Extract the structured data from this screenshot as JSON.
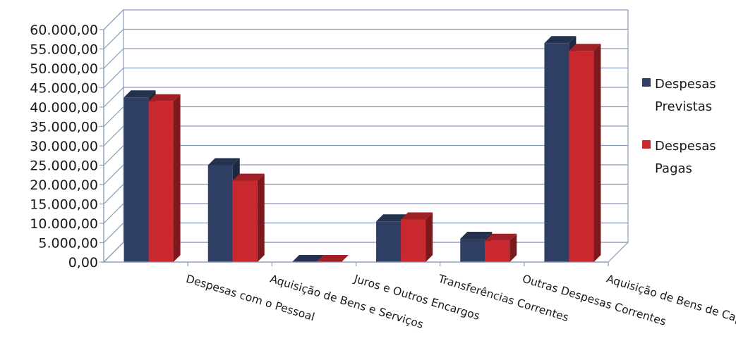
{
  "chart_data": {
    "type": "bar",
    "style": "3d-clustered-column",
    "categories": [
      "Despesas com o Pessoal",
      "Aquisição de Bens e Serviços",
      "Juros e Outros Encargos",
      "Transferências Correntes",
      "Outras Despesas Correntes",
      "Aquisição de Bens de Capital"
    ],
    "series": [
      {
        "name": [
          "Despesas",
          "Previstas"
        ],
        "color": "#2e3f63",
        "values": [
          42500,
          25000,
          0,
          10500,
          6000,
          56500
        ]
      },
      {
        "name": [
          "Despesas",
          "Pagas"
        ],
        "color": "#c8282e",
        "values": [
          41500,
          21000,
          0,
          11000,
          5500,
          54500
        ]
      }
    ],
    "yticks": [
      "0,00",
      "5.000,00",
      "10.000,00",
      "15.000,00",
      "20.000,00",
      "25.000,00",
      "30.000,00",
      "35.000,00",
      "40.000,00",
      "45.000,00",
      "50.000,00",
      "55.000,00",
      "60.000,00"
    ],
    "ylim": [
      0,
      60000
    ],
    "grid": true,
    "legend_position": "right"
  }
}
